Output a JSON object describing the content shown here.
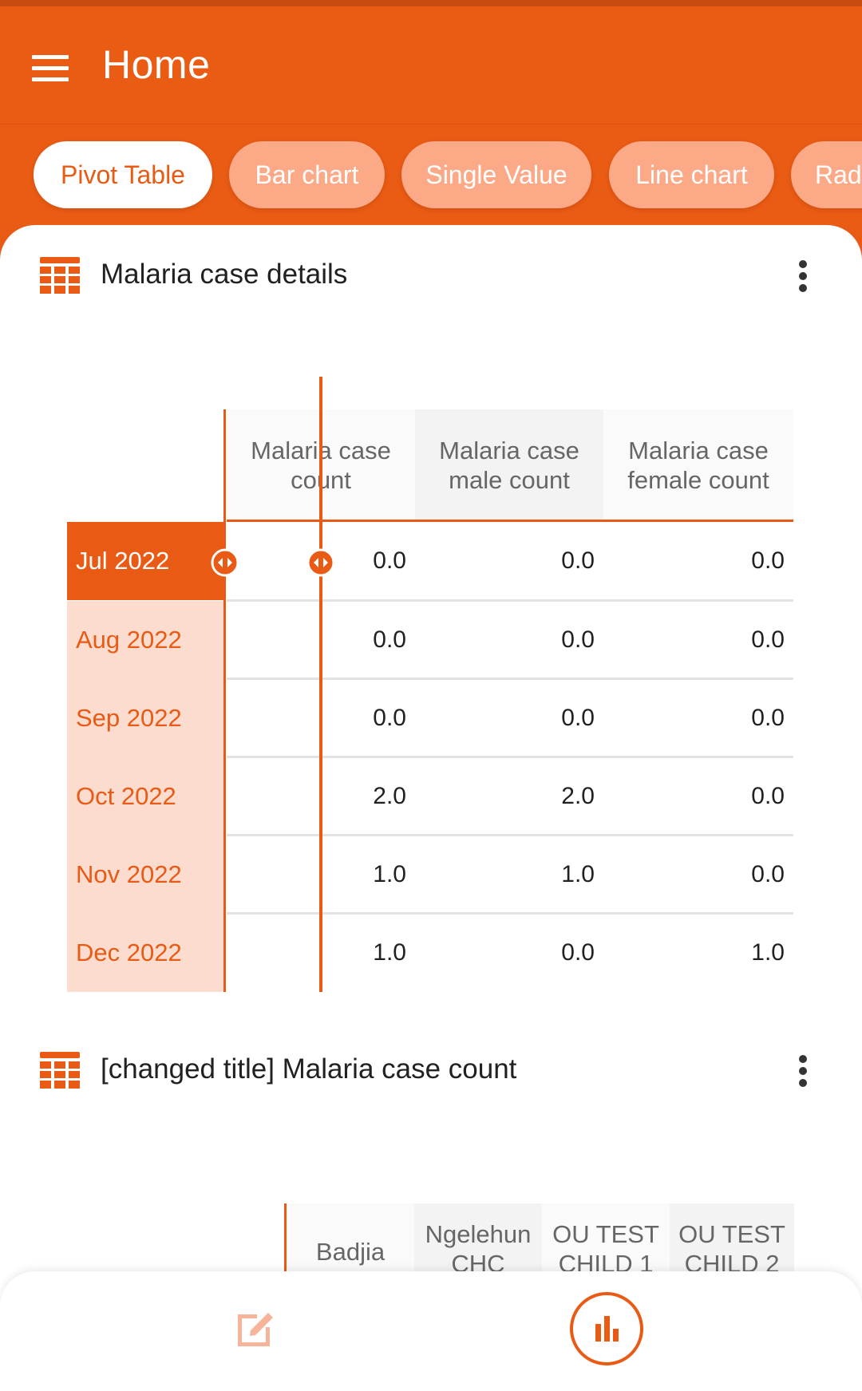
{
  "app": {
    "title": "Home"
  },
  "tabs": [
    {
      "label": "Pivot Table",
      "active": true
    },
    {
      "label": "Bar chart",
      "active": false
    },
    {
      "label": "Single Value",
      "active": false
    },
    {
      "label": "Line chart",
      "active": false
    },
    {
      "label": "Rada",
      "active": false
    }
  ],
  "cards": [
    {
      "title": "Malaria case details",
      "icon": "table-icon",
      "columns": [
        "Malaria case count",
        "Malaria case male count",
        "Malaria case female count"
      ],
      "rows": [
        {
          "label": "Jul 2022",
          "values": [
            "0.0",
            "0.0",
            "0.0"
          ]
        },
        {
          "label": "Aug 2022",
          "values": [
            "0.0",
            "0.0",
            "0.0"
          ]
        },
        {
          "label": "Sep 2022",
          "values": [
            "0.0",
            "0.0",
            "0.0"
          ]
        },
        {
          "label": "Oct 2022",
          "values": [
            "2.0",
            "2.0",
            "0.0"
          ]
        },
        {
          "label": "Nov 2022",
          "values": [
            "1.0",
            "1.0",
            "0.0"
          ]
        },
        {
          "label": "Dec 2022",
          "values": [
            "1.0",
            "0.0",
            "1.0"
          ]
        }
      ]
    },
    {
      "title": "[changed title] Malaria case count",
      "icon": "table-icon",
      "columns": [
        "Badjia",
        "Ngelehun CHC",
        "OU TEST CHILD 1",
        "OU TEST CHILD 2"
      ]
    }
  ],
  "bottom_nav": {
    "items": [
      "edit-icon",
      "analytics-icon"
    ]
  },
  "colors": {
    "primary": "#e95a14",
    "chip_inactive": "#fca987",
    "row_header_bg": "#fbdccf"
  }
}
